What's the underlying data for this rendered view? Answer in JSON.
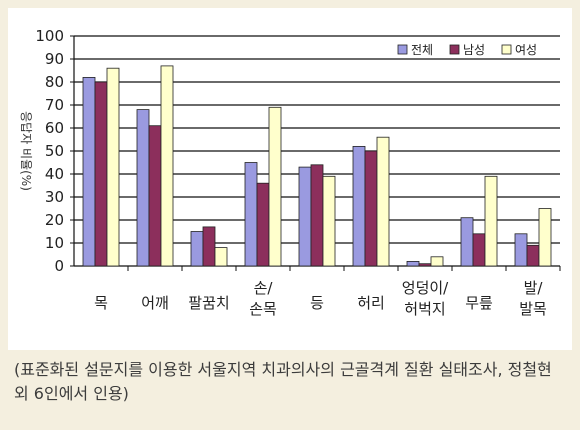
{
  "chart_data": {
    "type": "bar",
    "ylabel": "응답자 비율(%)",
    "ylim": [
      0,
      100
    ],
    "yticks": [
      0,
      10,
      20,
      30,
      40,
      50,
      60,
      70,
      80,
      90,
      100
    ],
    "grid": true,
    "legend_position": "top-right",
    "categories": [
      [
        "목"
      ],
      [
        "어깨"
      ],
      [
        "팔꿈치"
      ],
      [
        "손/",
        "손목"
      ],
      [
        "등"
      ],
      [
        "허리"
      ],
      [
        "엉덩이/",
        "허벅지"
      ],
      [
        "무릎"
      ],
      [
        "발/",
        "발목"
      ]
    ],
    "series": [
      {
        "name": "전체",
        "color": "#9a9ae0",
        "values": [
          82,
          68,
          15,
          45,
          43,
          52,
          2,
          21,
          14
        ]
      },
      {
        "name": "남성",
        "color": "#8c2f5c",
        "values": [
          80,
          61,
          17,
          36,
          44,
          50,
          1,
          14,
          9
        ]
      },
      {
        "name": "여성",
        "color": "#ffffcc",
        "values": [
          86,
          87,
          8,
          69,
          39,
          56,
          4,
          39,
          25
        ]
      }
    ]
  },
  "caption": "(표준화된 설문지를 이용한 서울지역 치과의사의 근골격계 질환 실태조사, 정철현 외 6인에서 인용)"
}
